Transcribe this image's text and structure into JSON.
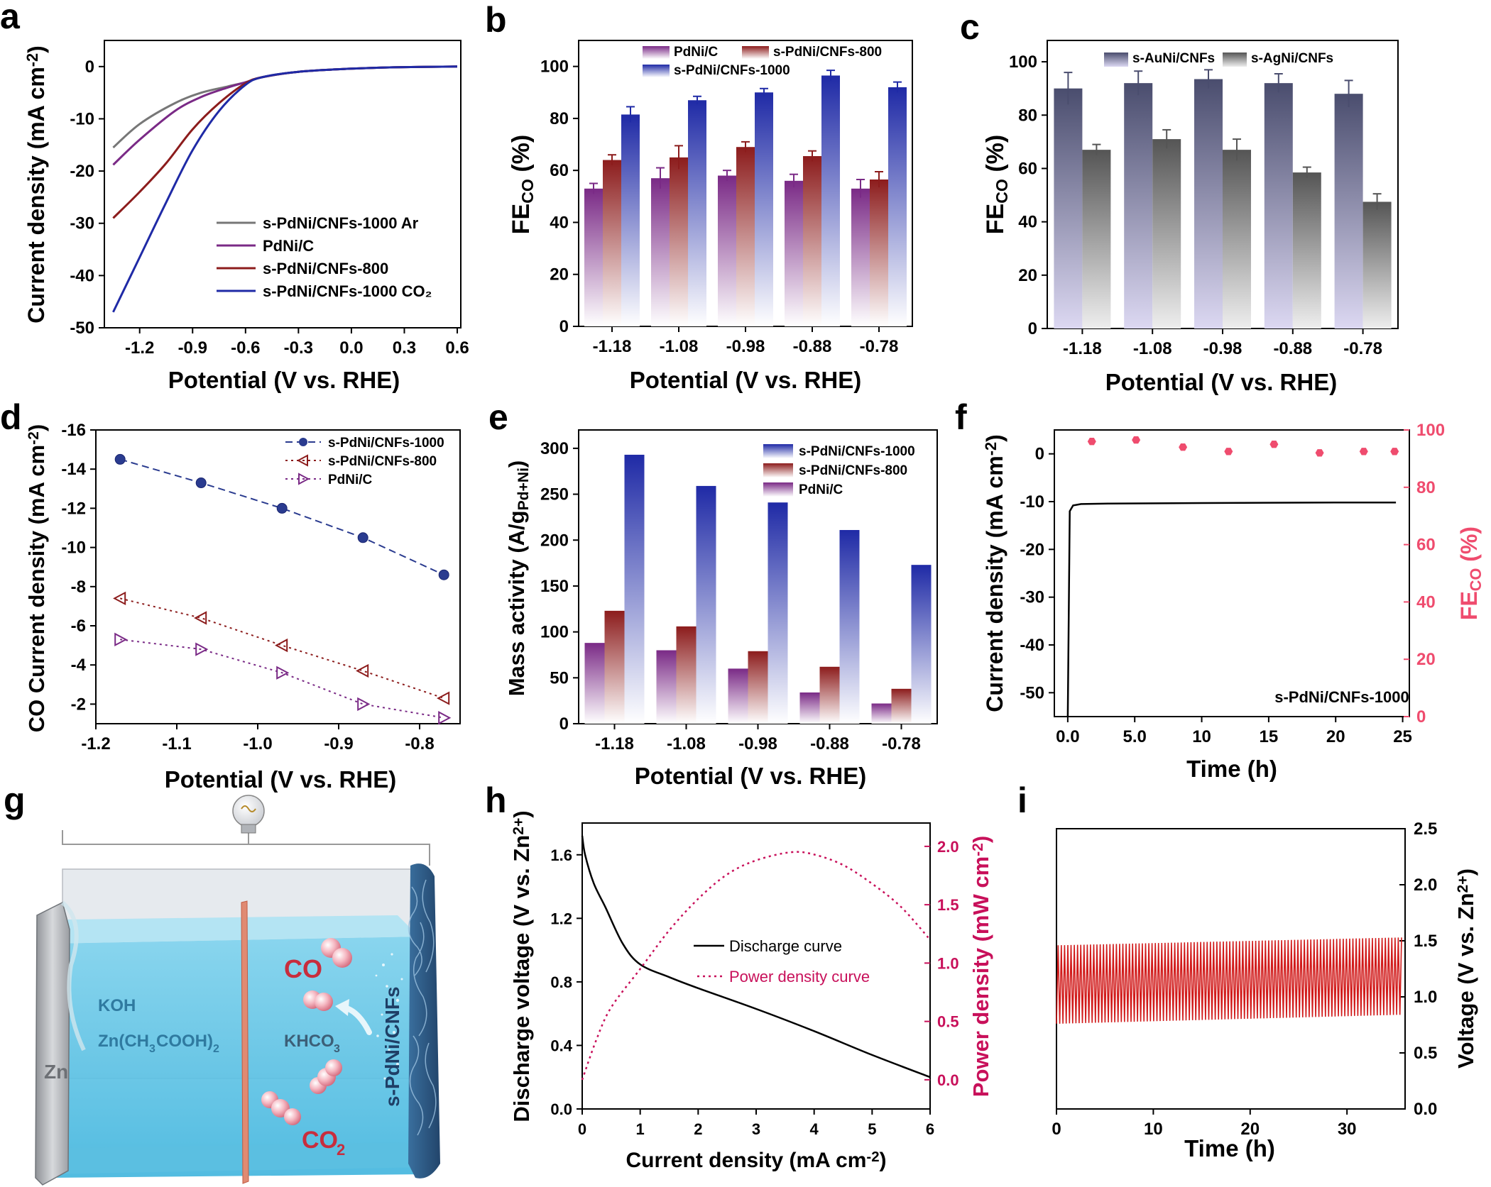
{
  "panels": {
    "a": "a",
    "b": "b",
    "c": "c",
    "d": "d",
    "e": "e",
    "f": "f",
    "g": "g",
    "h": "h",
    "i": "i"
  },
  "colors": {
    "gray": "#777777",
    "purple": "#7a2a86",
    "darkred": "#8c1c1c",
    "blue": "#1f2aa6",
    "navy": "#2a3b8f",
    "pink": "#ef4c6e",
    "magenta": "#c8105a",
    "red": "#d11a1a",
    "slate": "#4a4d6e",
    "gray2": "#555555"
  },
  "cell": {
    "labels": {
      "CO_top": "CO",
      "CO2_bottom_main": "CO",
      "CO2_bottom_sub": "2",
      "KOH": "KOH",
      "zn_acetate_main": "Zn(CH",
      "zn_acetate_sub1": "3",
      "zn_acetate_mid": "COOH)",
      "zn_acetate_sub2": "2",
      "khco3_main": "KHCO",
      "khco3_sub": "3",
      "Zn": "Zn",
      "cathode": "s-PdNi/CNFs"
    }
  },
  "chart_data": [
    {
      "panel": "a",
      "type": "line",
      "xlabel": "Potential (V vs. RHE)",
      "ylabel": "Current density (mA cm⁻²)",
      "xlim": [
        -1.4,
        0.62
      ],
      "ylim": [
        -50,
        5
      ],
      "xticks": [
        -1.2,
        -0.9,
        -0.6,
        -0.3,
        0.0,
        0.3,
        0.6
      ],
      "xtick_labels": [
        "-1.2",
        "-0.9",
        "-0.6",
        "-0.3",
        "0.0",
        "0.3",
        "0.6"
      ],
      "yticks": [
        0,
        -10,
        -20,
        -30,
        -40,
        -50
      ],
      "ytick_labels": [
        "0",
        "-10",
        "-20",
        "-30",
        "-40",
        "-50"
      ],
      "legend_position": "bottom-right",
      "series": [
        {
          "name": "s-PdNi/CNFs-1000 Ar",
          "color": "#777777",
          "x": [
            -1.35,
            -1.2,
            -1.0,
            -0.85,
            -0.7,
            -0.6,
            -0.5,
            -0.3,
            0.0,
            0.3,
            0.6
          ],
          "y": [
            -15.5,
            -11.0,
            -7.0,
            -5.0,
            -3.8,
            -3.0,
            -2.0,
            -1.0,
            -0.4,
            -0.1,
            0
          ]
        },
        {
          "name": "PdNi/C",
          "color": "#7a2a86",
          "x": [
            -1.35,
            -1.2,
            -1.0,
            -0.85,
            -0.7,
            -0.6,
            -0.5,
            -0.3,
            0.0,
            0.3,
            0.6
          ],
          "y": [
            -18.8,
            -14.0,
            -8.5,
            -5.8,
            -4.0,
            -3.0,
            -2.0,
            -1.0,
            -0.4,
            -0.1,
            0
          ]
        },
        {
          "name": "s-PdNi/CNFs-800",
          "color": "#8c1c1c",
          "x": [
            -1.35,
            -1.2,
            -1.05,
            -0.9,
            -0.75,
            -0.6,
            -0.5,
            -0.3,
            0.0,
            0.3,
            0.6
          ],
          "y": [
            -29.0,
            -24.0,
            -18.5,
            -12.0,
            -7.0,
            -3.2,
            -2.0,
            -1.0,
            -0.4,
            -0.1,
            0
          ]
        },
        {
          "name": "s-PdNi/CNFs-1000 CO₂",
          "color": "#1f2aa6",
          "x": [
            -1.35,
            -1.2,
            -1.05,
            -0.9,
            -0.75,
            -0.6,
            -0.5,
            -0.3,
            0.0,
            0.3,
            0.6
          ],
          "y": [
            -47.0,
            -36.5,
            -26.0,
            -16.0,
            -8.5,
            -3.5,
            -2.0,
            -1.0,
            -0.4,
            -0.1,
            0
          ]
        }
      ]
    },
    {
      "panel": "b",
      "type": "bar",
      "xlabel": "Potential (V vs. RHE)",
      "ylabel_main": "FE",
      "ylabel_sub": "CO",
      "ylabel_tail": " (%)",
      "categories": [
        "-1.18",
        "-1.08",
        "-0.98",
        "-0.88",
        "-0.78"
      ],
      "ylim": [
        0,
        110
      ],
      "yticks": [
        0,
        20,
        40,
        60,
        80,
        100
      ],
      "ytick_labels": [
        "0",
        "20",
        "40",
        "60",
        "80",
        "100"
      ],
      "legend_position": "top",
      "series": [
        {
          "name": "PdNi/C",
          "color": "#7a2a86",
          "values": [
            53,
            57,
            58,
            56,
            53
          ],
          "errors": [
            2,
            4,
            2,
            2.5,
            3.5
          ]
        },
        {
          "name": "s-PdNi/CNFs-800",
          "color": "#8c1c1c",
          "values": [
            64,
            65,
            69,
            65.5,
            56.5
          ],
          "errors": [
            2,
            4.5,
            2,
            2,
            3
          ]
        },
        {
          "name": "s-PdNi/CNFs-1000",
          "color": "#1f2aa6",
          "values": [
            81.5,
            87,
            90,
            96.5,
            92
          ],
          "errors": [
            3,
            1.5,
            1.5,
            2,
            2
          ]
        }
      ]
    },
    {
      "panel": "c",
      "type": "bar",
      "xlabel": "Potential (V vs. RHE)",
      "ylabel_main": "FE",
      "ylabel_sub": "CO",
      "ylabel_tail": " (%)",
      "categories": [
        "-1.18",
        "-1.08",
        "-0.98",
        "-0.88",
        "-0.78"
      ],
      "ylim": [
        0,
        108
      ],
      "yticks": [
        0,
        20,
        40,
        60,
        80,
        100
      ],
      "ytick_labels": [
        "0",
        "20",
        "40",
        "60",
        "80",
        "100"
      ],
      "legend_position": "top",
      "series": [
        {
          "name": "s-AuNi/CNFs",
          "color": "#4a4d6e",
          "values": [
            90,
            92,
            93.5,
            92,
            88
          ],
          "errors": [
            6,
            4.5,
            3.5,
            3.5,
            5
          ]
        },
        {
          "name": "s-AgNi/CNFs",
          "color": "#555555",
          "values": [
            67,
            71,
            67,
            58.5,
            47.5
          ],
          "errors": [
            2,
            3.5,
            4,
            2,
            3
          ]
        }
      ]
    },
    {
      "panel": "d",
      "type": "scatter",
      "xlabel": "Potential (V vs. RHE)",
      "ylabel": "CO Current density (mA cm⁻²)",
      "xlim": [
        -1.2,
        -0.75
      ],
      "ylim": [
        -16,
        -1
      ],
      "xticks": [
        -1.2,
        -1.1,
        -1.0,
        -0.9,
        -0.8
      ],
      "xtick_labels": [
        "-1.2",
        "-1.1",
        "-1.0",
        "-0.9",
        "-0.8"
      ],
      "yticks": [
        -16,
        -14,
        -12,
        -10,
        -8,
        -6,
        -4,
        -2
      ],
      "ytick_labels": [
        "-16",
        "-14",
        "-12",
        "-10",
        "-8",
        "-6",
        "-4",
        "-2"
      ],
      "legend_position": "top-right",
      "series": [
        {
          "name": "s-PdNi/CNFs-1000",
          "color": "#2a3b8f",
          "marker": "circle",
          "x": [
            -1.17,
            -1.07,
            -0.97,
            -0.87,
            -0.77
          ],
          "y": [
            -14.5,
            -13.3,
            -12.0,
            -10.5,
            -8.6
          ]
        },
        {
          "name": "s-PdNi/CNFs-800",
          "color": "#8c1c1c",
          "marker": "triangle-left",
          "x": [
            -1.17,
            -1.07,
            -0.97,
            -0.87,
            -0.77
          ],
          "y": [
            -7.4,
            -6.4,
            -5.0,
            -3.7,
            -2.3
          ]
        },
        {
          "name": "PdNi/C",
          "color": "#7a2a86",
          "marker": "triangle-right",
          "x": [
            -1.17,
            -1.07,
            -0.97,
            -0.87,
            -0.77
          ],
          "y": [
            -5.3,
            -4.8,
            -3.6,
            -2.0,
            -1.3
          ]
        }
      ]
    },
    {
      "panel": "e",
      "type": "bar",
      "xlabel": "Potential (V vs. RHE)",
      "ylabel_main": "Mass activity (A/g",
      "ylabel_sub": "Pd+Ni",
      "ylabel_tail": ")",
      "categories": [
        "-1.18",
        "-1.08",
        "-0.98",
        "-0.88",
        "-0.78"
      ],
      "ylim": [
        0,
        320
      ],
      "yticks": [
        0,
        50,
        100,
        150,
        200,
        250,
        300
      ],
      "ytick_labels": [
        "0",
        "50",
        "100",
        "150",
        "200",
        "250",
        "300"
      ],
      "legend_position": "top-right",
      "legend_order": [
        "s-PdNi/CNFs-1000",
        "s-PdNi/CNFs-800",
        "PdNi/C"
      ],
      "series": [
        {
          "name": "PdNi/C",
          "color": "#7a2a86",
          "values": [
            88,
            80,
            60,
            34,
            22
          ]
        },
        {
          "name": "s-PdNi/CNFs-800",
          "color": "#8c1c1c",
          "values": [
            123,
            106,
            79,
            62,
            38
          ]
        },
        {
          "name": "s-PdNi/CNFs-1000",
          "color": "#1f2aa6",
          "values": [
            293,
            259,
            241,
            211,
            173
          ]
        }
      ]
    },
    {
      "panel": "f",
      "type": "line",
      "xlabel": "Time (h)",
      "ylabel": "Current density (mA cm⁻²)",
      "ylabel2_main": "FE",
      "ylabel2_sub": "CO",
      "ylabel2_tail": " (%)",
      "xlim": [
        -1,
        25.5
      ],
      "ylim": [
        -55,
        5
      ],
      "y2lim": [
        0,
        100
      ],
      "xticks": [
        0,
        5,
        10,
        15,
        20,
        25
      ],
      "xtick_labels": [
        "0.0",
        "5.0",
        "10",
        "15",
        "20",
        "25"
      ],
      "yticks": [
        0,
        -10,
        -20,
        -30,
        -40,
        -50
      ],
      "ytick_labels": [
        "0",
        "-10",
        "-20",
        "-30",
        "-40",
        "-50"
      ],
      "y2ticks": [
        0,
        20,
        40,
        60,
        80,
        100
      ],
      "y2tick_labels": [
        "0",
        "20",
        "40",
        "60",
        "80",
        "100"
      ],
      "annotation": "s-PdNi/CNFs-1000",
      "current": {
        "x": [
          0,
          0.15,
          0.4,
          1,
          3,
          10,
          20,
          24.5
        ],
        "y": [
          -55,
          -12,
          -10.8,
          -10.5,
          -10.4,
          -10.3,
          -10.2,
          -10.2
        ]
      },
      "fe": {
        "x": [
          1.8,
          5.1,
          8.6,
          12.0,
          15.4,
          18.8,
          22.1,
          24.4
        ],
        "y": [
          96,
          96.5,
          94,
          92.5,
          95,
          92,
          92.5,
          92.5
        ]
      }
    },
    {
      "panel": "h",
      "type": "line",
      "xlabel": "Current density (mA cm⁻²)",
      "ylabel": "Discharge voltage (V vs. Zn²⁺)",
      "ylabel2": "Power density (mW cm⁻²)",
      "xlim": [
        0,
        6
      ],
      "ylim": [
        0,
        1.8
      ],
      "y2lim": [
        -0.25,
        2.2
      ],
      "xticks": [
        0,
        1,
        2,
        3,
        4,
        5,
        6
      ],
      "xtick_labels": [
        "0",
        "1",
        "2",
        "3",
        "4",
        "5",
        "6"
      ],
      "yticks": [
        0,
        0.4,
        0.8,
        1.2,
        1.6
      ],
      "ytick_labels": [
        "0.0",
        "0.4",
        "0.8",
        "1.2",
        "1.6"
      ],
      "y2ticks": [
        0,
        0.5,
        1.0,
        1.5,
        2.0
      ],
      "y2tick_labels": [
        "0.0",
        "0.5",
        "1.0",
        "1.5",
        "2.0"
      ],
      "legend_position": "center-right",
      "series": [
        {
          "name": "Discharge curve",
          "color": "#000000",
          "axis": "left",
          "x": [
            0,
            0.05,
            0.2,
            0.4,
            0.7,
            1.0,
            1.5,
            2.0,
            3.0,
            4.0,
            5.0,
            6.0
          ],
          "y": [
            1.72,
            1.6,
            1.42,
            1.27,
            1.04,
            0.91,
            0.83,
            0.76,
            0.63,
            0.49,
            0.34,
            0.2
          ]
        },
        {
          "name": "Power density curve",
          "color": "#c8105a",
          "axis": "right",
          "dashed": true,
          "x": [
            0,
            0.25,
            0.5,
            1.0,
            1.5,
            2.0,
            2.5,
            3.0,
            3.6,
            4.0,
            4.5,
            5.0,
            5.5,
            6.0
          ],
          "y": [
            0,
            0.35,
            0.62,
            0.95,
            1.28,
            1.55,
            1.76,
            1.88,
            1.95,
            1.93,
            1.84,
            1.68,
            1.48,
            1.2
          ]
        }
      ]
    },
    {
      "panel": "i",
      "type": "line",
      "xlabel": "Time (h)",
      "ylabel": "Voltage (V vs. Zn²⁺)",
      "xlim": [
        0,
        36
      ],
      "ylim": [
        0,
        2.5
      ],
      "xticks": [
        0,
        10,
        20,
        30
      ],
      "xtick_labels": [
        "0",
        "10",
        "20",
        "30"
      ],
      "yticks": [
        0,
        0.5,
        1.0,
        1.5,
        2.0,
        2.5
      ],
      "ytick_labels": [
        "0.0",
        "0.5",
        "1.0",
        "1.5",
        "2.0",
        "2.5"
      ],
      "series": [
        {
          "name": "",
          "color": "#d11a1a",
          "x_start": 0,
          "x_end": 35.8,
          "cycles": 107,
          "charge_start": 1.46,
          "charge_end": 1.53,
          "discharge_start": 0.76,
          "discharge_end": 0.84
        }
      ]
    }
  ]
}
